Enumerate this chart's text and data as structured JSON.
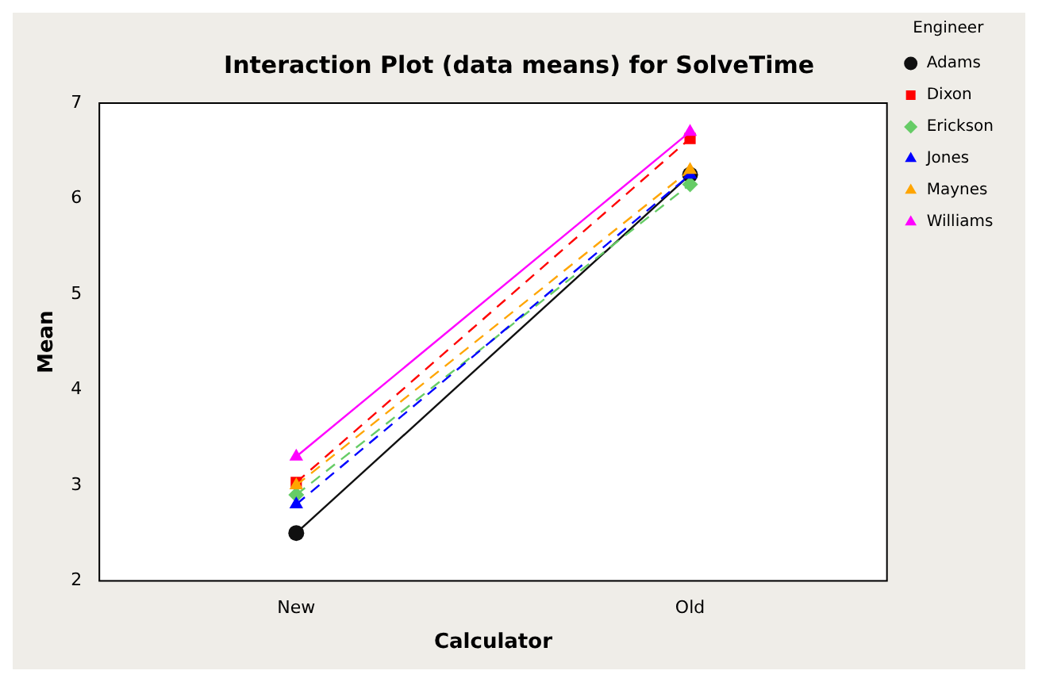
{
  "chart_data": {
    "type": "line",
    "title": "Interaction Plot (data means) for SolveTime",
    "xlabel": "Calculator",
    "ylabel": "Mean",
    "legend_title": "Engineer",
    "legend": "right",
    "grid": false,
    "categories": [
      "New",
      "Old"
    ],
    "ylim": [
      2,
      7
    ],
    "yticks": [
      2,
      3,
      4,
      5,
      6,
      7
    ],
    "series": [
      {
        "name": "Adams",
        "color": "#101010",
        "values": [
          2.5,
          6.25
        ],
        "marker": "circle",
        "line_style": "solid"
      },
      {
        "name": "Dixon",
        "color": "#ff0000",
        "values": [
          3.03,
          6.63
        ],
        "marker": "square",
        "line_style": "dashed"
      },
      {
        "name": "Erickson",
        "color": "#66cc66",
        "values": [
          2.9,
          6.15
        ],
        "marker": "diamond",
        "line_style": "dashed"
      },
      {
        "name": "Jones",
        "color": "#0000ff",
        "values": [
          2.8,
          6.25
        ],
        "marker": "triangle",
        "line_style": "dashed"
      },
      {
        "name": "Maynes",
        "color": "#ffa500",
        "values": [
          3.0,
          6.3
        ],
        "marker": "triangle",
        "line_style": "dashed"
      },
      {
        "name": "Williams",
        "color": "#ff00ff",
        "values": [
          3.3,
          6.7
        ],
        "marker": "triangle",
        "line_style": "solid"
      }
    ]
  }
}
